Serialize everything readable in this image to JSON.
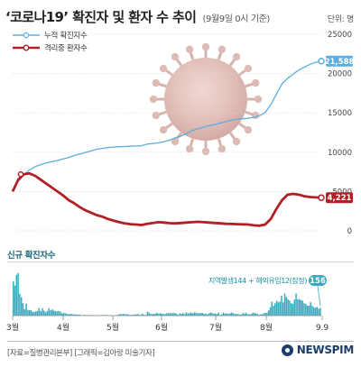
{
  "header": {
    "title": "‘코로나19’ 확진자 및 환자 수 추이",
    "subtitle": "(9월9일 0시 기준)",
    "unit": "단위: 명"
  },
  "legend": [
    {
      "label": "누적 확진자수",
      "color": "#5aaee0"
    },
    {
      "label": "격리중 환자수",
      "color": "#b21f24"
    }
  ],
  "new_cases_section": {
    "label": "신규 확진자수",
    "annotation": "지역발생144 + 해외유입12(잠정)",
    "latest_value": "156",
    "color": "#3aa8bd"
  },
  "footer": {
    "credits": "[자료=질병관리본부] [그래픽=김아랑 미술기자]",
    "logo": "NEWSPIM"
  },
  "chart_data": [
    {
      "type": "line",
      "x_ticks": [
        "3월",
        "4월",
        "5월",
        "6월",
        "7월",
        "8월",
        "9.9"
      ],
      "y_ticks": [
        "25000",
        "20000",
        "15000",
        "10000",
        "5000",
        "0"
      ],
      "ylim": [
        0,
        25000
      ],
      "series": [
        {
          "name": "누적 확진자수",
          "color": "#5aaee0",
          "end_label": "21,588",
          "values": [
            5186,
            6284,
            7134,
            7755,
            8162,
            8413,
            8652,
            8799,
            8961,
            9137,
            9332,
            9583,
            9786,
            9976,
            10156,
            10384,
            10480,
            10591,
            10653,
            10694,
            10728,
            10761,
            10793,
            10822,
            11037,
            11110,
            11190,
            11344,
            11541,
            11852,
            12051,
            12373,
            12757,
            12967,
            13181,
            13373,
            13512,
            13711,
            13879,
            14092,
            14175,
            14251,
            14336,
            14423,
            14660,
            15039,
            16058,
            17399,
            18706,
            19400,
            19947,
            20449,
            20842,
            21177,
            21432,
            21588
          ]
        },
        {
          "name": "격리중 환자수",
          "color": "#b21f24",
          "end_label": "4,221",
          "values": [
            5000,
            6500,
            7200,
            7300,
            7000,
            6500,
            6000,
            5500,
            5000,
            4500,
            3900,
            3500,
            3000,
            2600,
            2300,
            2000,
            1800,
            1500,
            1300,
            1100,
            950,
            850,
            800,
            750,
            900,
            1000,
            1100,
            1050,
            980,
            950,
            1000,
            1050,
            1100,
            1150,
            1100,
            1050,
            1000,
            950,
            900,
            880,
            850,
            820,
            800,
            700,
            650,
            800,
            1500,
            2800,
            3900,
            4600,
            4700,
            4600,
            4400,
            4300,
            4250,
            4221
          ]
        }
      ]
    },
    {
      "type": "bar",
      "x_ticks": [
        "3월",
        "4월",
        "5월",
        "6월",
        "7월",
        "8월",
        "9.9"
      ],
      "ylim": [
        0,
        900
      ],
      "series": [
        {
          "name": "신규 확진자수",
          "color": "#3aa8bd",
          "values": [
            686,
            600,
            813,
            851,
            435,
            367,
            248,
            131,
            242,
            114,
            110,
            107,
            76,
            74,
            84,
            93,
            152,
            87,
            147,
            98,
            64,
            91,
            146,
            105,
            125,
            101,
            89,
            86,
            94,
            81,
            47,
            47,
            53,
            39,
            27,
            30,
            32,
            25,
            27,
            22,
            18,
            22,
            8,
            9,
            14,
            8,
            6,
            13,
            9,
            11,
            8,
            6,
            13,
            4,
            8,
            14,
            9,
            11,
            10,
            6,
            10,
            3,
            2,
            4,
            12,
            18,
            34,
            27,
            35,
            26,
            29,
            27,
            15,
            13,
            20,
            23,
            25,
            32,
            16,
            19,
            40,
            15,
            15,
            79,
            58,
            39,
            27,
            35,
            38,
            57,
            38,
            49,
            37,
            31,
            34,
            48,
            43,
            50,
            45,
            56,
            49,
            36,
            17,
            46,
            39,
            51,
            28,
            67,
            42,
            51,
            62,
            44,
            63,
            61,
            46,
            48,
            50,
            54,
            33,
            39,
            24,
            42,
            61,
            54,
            35,
            44,
            33,
            61,
            14,
            24,
            63,
            39,
            45,
            35,
            44,
            62,
            49,
            36,
            34,
            30,
            25,
            18,
            48,
            41,
            59,
            30,
            26,
            29,
            47,
            58,
            43,
            34,
            20,
            25,
            28,
            43,
            54,
            56,
            103,
            166,
            279,
            197,
            246,
            297,
            266,
            280,
            397,
            266,
            441,
            371,
            323,
            299,
            248,
            235,
            320,
            441,
            324,
            332,
            308,
            299,
            248,
            235,
            199,
            195,
            267,
            198,
            168,
            155,
            176,
            136,
            156
          ]
        }
      ]
    }
  ]
}
